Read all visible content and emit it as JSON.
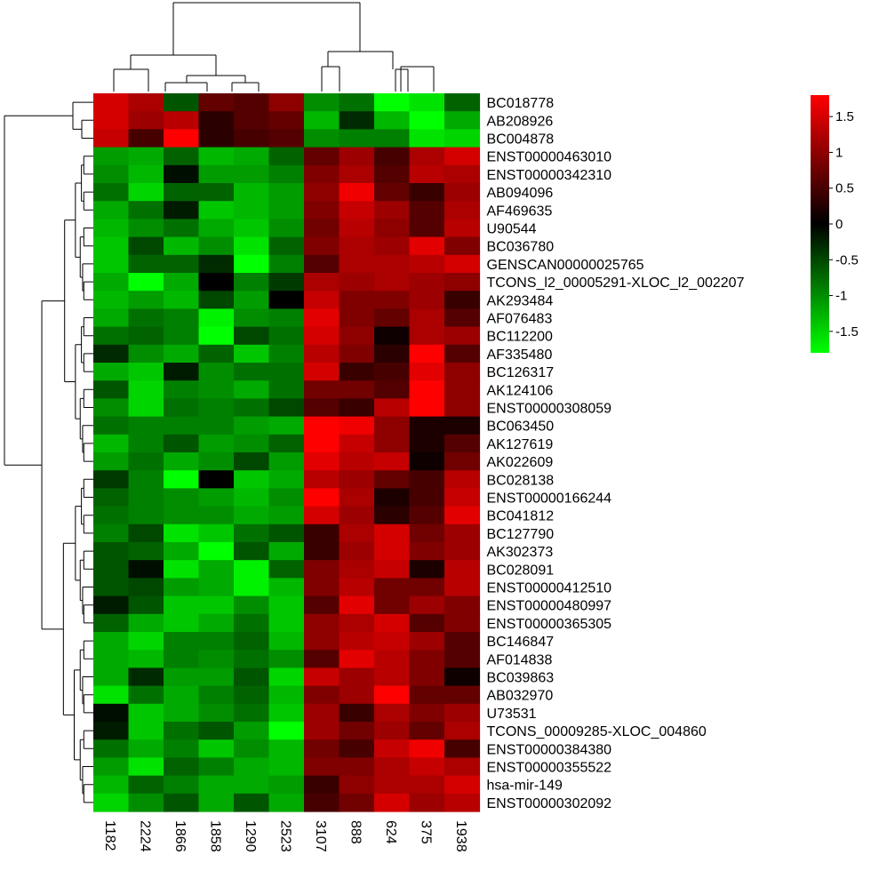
{
  "chart_data": {
    "type": "heatmap",
    "title": "",
    "xlabel": "",
    "ylabel": "",
    "columns": [
      "1182",
      "2224",
      "1866",
      "1858",
      "1290",
      "2523",
      "3107",
      "888",
      "624",
      "375",
      "1938"
    ],
    "rows": [
      "BC018778",
      "AB208926",
      "BC004878",
      "ENST00000463010",
      "ENST00000342310",
      "AB094096",
      "AF469635",
      "U90544",
      "BC036780",
      "GENSCAN00000025765",
      "TCONS_l2_00005291-XLOC_l2_002207",
      "AK293484",
      "AF076483",
      "BC112200",
      "AF335480",
      "BC126317",
      "AK124106",
      "ENST00000308059",
      "BC063450",
      "AK127619",
      "AK022609",
      "BC028138",
      "ENST00000166244",
      "BC041812",
      "BC127790",
      "AK302373",
      "BC028091",
      "ENST00000412510",
      "ENST00000480997",
      "ENST00000365305",
      "BC146847",
      "AF014838",
      "BC039863",
      "AB032970",
      "U73531",
      "TCONS_00009285-XLOC_004860",
      "ENST00000384380",
      "ENST00000355522",
      "hsa-mir-149",
      "ENST00000302092"
    ],
    "values": [
      [
        1.5,
        1.2,
        -0.6,
        0.7,
        0.6,
        1.0,
        -1.0,
        -0.8,
        -1.9,
        -1.6,
        -0.7
      ],
      [
        1.5,
        1.1,
        1.3,
        0.3,
        0.6,
        0.7,
        -1.3,
        -0.3,
        -1.3,
        -1.8,
        -1.2
      ],
      [
        1.4,
        0.5,
        1.8,
        0.3,
        0.5,
        0.6,
        -1.0,
        -0.9,
        -0.9,
        -1.6,
        -1.5
      ],
      [
        -1.1,
        -1.2,
        -0.7,
        -1.3,
        -1.2,
        -0.7,
        0.7,
        1.1,
        0.5,
        1.2,
        1.5
      ],
      [
        -1.0,
        -1.3,
        -0.1,
        -1.1,
        -1.1,
        -0.9,
        0.9,
        1.2,
        0.6,
        1.3,
        1.2
      ],
      [
        -0.8,
        -1.5,
        -0.7,
        -0.7,
        -1.3,
        -1.1,
        1.0,
        1.7,
        0.7,
        0.4,
        1.1
      ],
      [
        -1.2,
        -0.8,
        -0.2,
        -1.4,
        -1.3,
        -1.1,
        0.9,
        1.4,
        1.1,
        0.6,
        1.2
      ],
      [
        -1.3,
        -1.0,
        -0.8,
        -1.2,
        -1.4,
        -1.0,
        0.8,
        1.3,
        1.0,
        0.6,
        1.3
      ],
      [
        -1.4,
        -0.5,
        -1.3,
        -1.0,
        -1.6,
        -0.7,
        0.9,
        1.2,
        1.1,
        1.6,
        0.9
      ],
      [
        -1.4,
        -0.7,
        -0.7,
        -0.3,
        -1.8,
        -0.9,
        0.6,
        1.2,
        1.2,
        1.3,
        1.5
      ],
      [
        -1.2,
        -1.8,
        -1.2,
        0.0,
        -0.9,
        -0.4,
        1.2,
        1.1,
        1.2,
        1.1,
        1.0
      ],
      [
        -1.3,
        -1.1,
        -1.3,
        -0.5,
        -1.1,
        0.0,
        1.4,
        0.9,
        0.9,
        1.1,
        0.4
      ],
      [
        -1.2,
        -0.8,
        -0.9,
        -1.7,
        -1.0,
        -0.9,
        1.6,
        0.9,
        0.7,
        1.2,
        0.6
      ],
      [
        -0.8,
        -0.7,
        -0.9,
        -1.8,
        -0.5,
        -0.8,
        1.5,
        1.0,
        0.1,
        1.2,
        1.1
      ],
      [
        -0.3,
        -1.0,
        -1.2,
        -0.7,
        -1.4,
        -0.9,
        1.3,
        0.9,
        0.3,
        1.8,
        0.6
      ],
      [
        -1.2,
        -1.4,
        -0.2,
        -1.0,
        -0.8,
        -0.8,
        1.5,
        0.4,
        0.5,
        1.6,
        1.0
      ],
      [
        -0.6,
        -1.5,
        -0.9,
        -1.0,
        -1.2,
        -0.8,
        0.8,
        0.8,
        0.6,
        1.8,
        1.0
      ],
      [
        -1.0,
        -1.5,
        -0.8,
        -0.9,
        -0.8,
        -0.5,
        0.6,
        0.4,
        1.3,
        1.8,
        1.0
      ],
      [
        -0.8,
        -0.9,
        -0.9,
        -0.9,
        -1.1,
        -1.2,
        1.9,
        1.7,
        1.0,
        0.2,
        0.2
      ],
      [
        -1.3,
        -0.9,
        -0.6,
        -1.1,
        -1.0,
        -0.7,
        1.9,
        1.4,
        1.0,
        0.2,
        0.6
      ],
      [
        -1.1,
        -0.8,
        -1.2,
        -1.0,
        -0.5,
        -1.1,
        1.6,
        1.3,
        1.4,
        0.1,
        0.8
      ],
      [
        -0.4,
        -0.9,
        -1.8,
        0.0,
        -1.4,
        -1.2,
        1.3,
        1.1,
        0.7,
        0.5,
        1.3
      ],
      [
        -0.7,
        -0.9,
        -1.0,
        -1.1,
        -1.3,
        -1.0,
        1.8,
        1.2,
        0.2,
        0.5,
        1.4
      ],
      [
        -0.8,
        -0.9,
        -1.0,
        -1.0,
        -1.2,
        -1.1,
        1.5,
        1.1,
        0.3,
        0.6,
        1.6
      ],
      [
        -0.9,
        -0.5,
        -1.6,
        -1.4,
        -0.8,
        -0.6,
        0.4,
        1.2,
        1.5,
        0.8,
        1.1
      ],
      [
        -0.6,
        -0.7,
        -1.2,
        -1.9,
        -0.6,
        -1.2,
        0.4,
        1.1,
        1.5,
        0.9,
        1.1
      ],
      [
        -0.6,
        -0.1,
        -1.6,
        -1.2,
        -1.7,
        -0.7,
        0.9,
        1.2,
        1.4,
        0.2,
        1.3
      ],
      [
        -0.6,
        -0.5,
        -1.1,
        -1.2,
        -1.7,
        -1.3,
        0.9,
        1.3,
        0.8,
        0.8,
        1.3
      ],
      [
        -0.2,
        -0.6,
        -1.4,
        -1.4,
        -1.0,
        -1.4,
        0.6,
        1.6,
        0.8,
        1.1,
        0.9
      ],
      [
        -0.7,
        -1.2,
        -1.4,
        -1.2,
        -0.8,
        -1.4,
        1.0,
        1.2,
        1.5,
        0.6,
        0.9
      ],
      [
        -1.2,
        -1.5,
        -0.9,
        -0.9,
        -0.7,
        -1.3,
        1.0,
        1.3,
        1.4,
        1.1,
        0.6
      ],
      [
        -1.2,
        -1.3,
        -0.9,
        -1.0,
        -0.8,
        -1.0,
        0.6,
        1.6,
        1.3,
        0.9,
        0.6
      ],
      [
        -1.2,
        -0.3,
        -1.1,
        -1.1,
        -0.6,
        -1.5,
        1.4,
        1.1,
        1.3,
        0.9,
        0.1
      ],
      [
        -1.6,
        -0.8,
        -1.2,
        -0.9,
        -0.7,
        -1.3,
        0.9,
        1.1,
        1.9,
        0.7,
        0.7
      ],
      [
        -0.1,
        -1.4,
        -1.2,
        -1.0,
        -0.8,
        -1.4,
        1.1,
        0.4,
        1.2,
        0.9,
        1.1
      ],
      [
        -0.2,
        -1.4,
        -0.8,
        -0.6,
        -1.1,
        -1.9,
        1.1,
        0.8,
        1.1,
        0.7,
        1.2
      ],
      [
        -0.8,
        -1.2,
        -0.9,
        -1.4,
        -1.0,
        -1.3,
        0.8,
        0.5,
        1.4,
        1.7,
        0.5
      ],
      [
        -1.1,
        -1.6,
        -0.7,
        -0.9,
        -1.2,
        -1.3,
        0.9,
        0.9,
        1.2,
        1.4,
        1.2
      ],
      [
        -1.3,
        -0.7,
        -0.9,
        -1.2,
        -1.2,
        -1.1,
        0.4,
        1.0,
        1.2,
        1.2,
        1.5
      ],
      [
        -1.5,
        -1.0,
        -0.6,
        -1.2,
        -0.6,
        -1.2,
        0.5,
        0.8,
        1.5,
        1.1,
        1.3
      ]
    ],
    "color_scale": {
      "min": -1.8,
      "max": 1.8,
      "low": "#00ff00",
      "mid": "#000000",
      "high": "#ff0000"
    },
    "legend": {
      "position": "right",
      "ticks": [
        1.5,
        1,
        0.5,
        0,
        -0.5,
        -1,
        -1.5
      ]
    },
    "row_dendrogram": true,
    "column_dendrogram": true,
    "grid": false
  }
}
